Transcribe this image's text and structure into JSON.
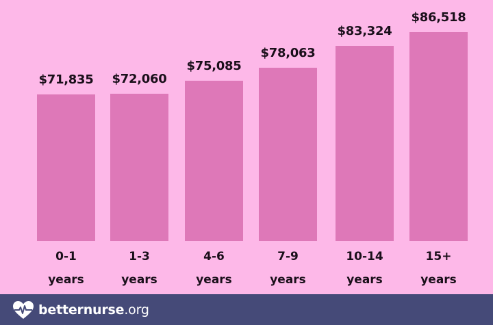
{
  "chart_data": {
    "type": "bar",
    "title": "",
    "xlabel": "",
    "ylabel": "",
    "categories": [
      "0-1 years",
      "1-3 years",
      "4-6 years",
      "7-9 years",
      "10-14 years",
      "15+ years"
    ],
    "category_lines": [
      [
        "0-1",
        "years"
      ],
      [
        "1-3",
        "years"
      ],
      [
        "4-6",
        "years"
      ],
      [
        "7-9",
        "years"
      ],
      [
        "10-14",
        "years"
      ],
      [
        "15+",
        "years"
      ]
    ],
    "values": [
      71835,
      72060,
      75085,
      78063,
      83324,
      86518
    ],
    "labels": [
      "$71,835",
      "$72,060",
      "$75,085",
      "$78,063",
      "$83,324",
      "$86,518"
    ],
    "grid": false,
    "legend": null,
    "bar_color": "#de78b8",
    "background_color": "#fdb8e8"
  },
  "footer": {
    "brand_bold": "betternurse",
    "brand_suffix": ".org",
    "icon": "heart-pulse-icon",
    "background_color": "#454a78"
  }
}
